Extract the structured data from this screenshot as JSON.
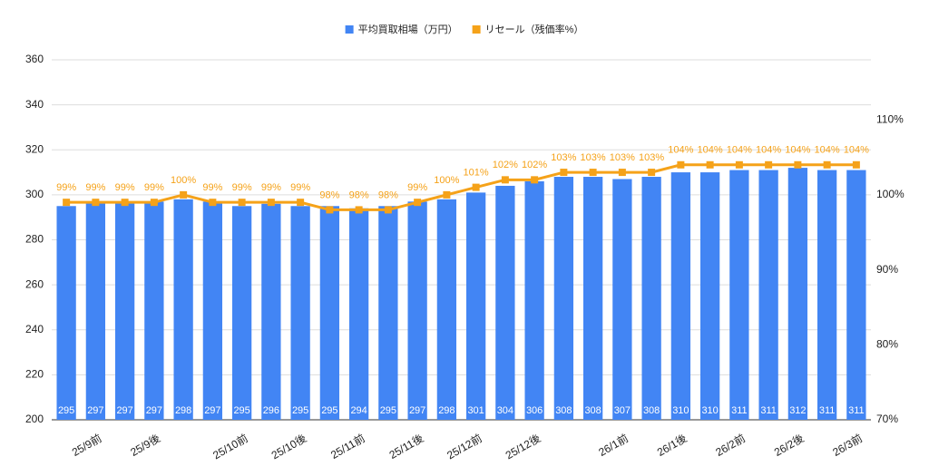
{
  "chart_data": {
    "type": "bar",
    "categories": [
      null,
      "25/9前",
      null,
      "25/9後",
      null,
      null,
      "25/10前",
      null,
      "25/10後",
      null,
      "25/11前",
      null,
      "25/11後",
      null,
      "25/12前",
      null,
      "25/12後",
      null,
      null,
      "26/1前",
      null,
      "26/1後",
      null,
      "26/2前",
      null,
      "26/2後",
      null,
      "26/3前"
    ],
    "series": [
      {
        "name": "平均買取相場（万円）",
        "type": "bar",
        "color": "#4285f4",
        "values": [
          295,
          297,
          297,
          297,
          298,
          297,
          295,
          296,
          295,
          295,
          294,
          295,
          297,
          298,
          301,
          304,
          306,
          308,
          308,
          307,
          308,
          310,
          310,
          311,
          311,
          312,
          311,
          311
        ]
      },
      {
        "name": "リセール（残価率%）",
        "type": "line",
        "axis": "y2",
        "color": "#f5a219",
        "values": [
          99,
          99,
          99,
          99,
          100,
          99,
          99,
          99,
          99,
          98,
          98,
          98,
          99,
          100,
          101,
          102,
          102,
          103,
          103,
          103,
          103,
          104,
          104,
          104,
          104,
          104,
          104,
          104
        ],
        "value_labels": [
          "99%",
          "99%",
          "99%",
          "99%",
          "100%",
          "99%",
          "99%",
          "99%",
          "99%",
          "98%",
          "98%",
          "98%",
          "99%",
          "100%",
          "101%",
          "102%",
          "102%",
          "103%",
          "103%",
          "103%",
          "103%",
          "104%",
          "104%",
          "104%",
          "104%",
          "104%",
          "104%",
          "104%"
        ]
      }
    ],
    "ylim": [
      200,
      360
    ],
    "yticks": [
      200,
      220,
      240,
      260,
      280,
      300,
      320,
      340,
      360
    ],
    "y2lim": [
      70,
      118
    ],
    "y2ticks": [
      {
        "value": 70,
        "label": "70%"
      },
      {
        "value": 80,
        "label": "80%"
      },
      {
        "value": 90,
        "label": "90%"
      },
      {
        "value": 100,
        "label": "100%"
      },
      {
        "value": 110,
        "label": "110%"
      }
    ],
    "grid": true,
    "legend": "top"
  }
}
